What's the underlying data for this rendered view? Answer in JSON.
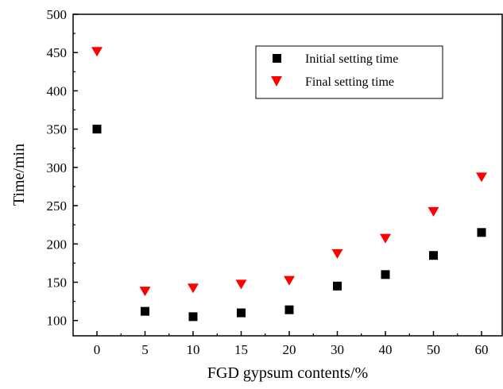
{
  "chart_data": {
    "type": "scatter",
    "categories": [
      "0",
      "5",
      "10",
      "15",
      "20",
      "30",
      "40",
      "50",
      "60"
    ],
    "series": [
      {
        "name": "Initial setting time",
        "marker": "square",
        "color": "#000000",
        "values": [
          350,
          112,
          105,
          110,
          114,
          145,
          160,
          185,
          215
        ]
      },
      {
        "name": "Final setting time",
        "marker": "triangle-down",
        "color": "#ff0000",
        "values": [
          452,
          139,
          143,
          148,
          153,
          188,
          208,
          243,
          288
        ]
      }
    ],
    "yticks": [
      "100",
      "150",
      "200",
      "250",
      "300",
      "350",
      "400",
      "450",
      "500"
    ],
    "xlabel": "FGD gypsum contents/%",
    "ylabel": "Time/min",
    "ylim": [
      80,
      500
    ],
    "grid": false,
    "legend_position": "top-right"
  }
}
